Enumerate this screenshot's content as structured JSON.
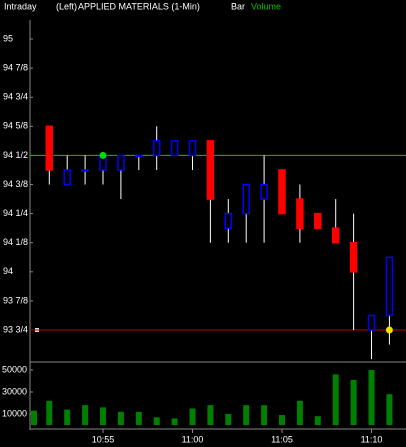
{
  "chart_data": {
    "type": "candlestick",
    "mode": "Intraday",
    "side": "(Left)",
    "title": "APPLIED MATERIALS (1-Min)",
    "style": "Bar",
    "study": "Volume",
    "categories": [
      null,
      null,
      null,
      null,
      "10:55",
      null,
      null,
      null,
      null,
      "11:00",
      null,
      null,
      null,
      null,
      "11:05",
      null,
      null,
      null,
      null,
      "11:10",
      null
    ],
    "open": [
      null,
      94.625,
      94.375,
      94.4375,
      94.4375,
      94.4375,
      94.5,
      94.5,
      94.5,
      94.5,
      94.5625,
      94.1875,
      94.25,
      94.3125,
      94.4375,
      94.3125,
      94.25,
      94.1875,
      94.125,
      93.75,
      93.8125
    ],
    "high": [
      null,
      94.625,
      94.5,
      94.5,
      94.5,
      94.5,
      94.5,
      94.625,
      94.5625,
      94.5625,
      94.5625,
      94.3125,
      94.375,
      94.5,
      94.4375,
      94.375,
      94.25,
      94.3125,
      94.25,
      93.8125,
      94.0625
    ],
    "low": [
      null,
      94.375,
      94.375,
      94.375,
      94.375,
      94.3125,
      94.4375,
      94.4375,
      94.5,
      94.4375,
      94.125,
      94.125,
      94.125,
      94.125,
      94.25,
      94.125,
      94.1875,
      94.125,
      93.75,
      93.625,
      93.6875
    ],
    "close": [
      null,
      94.4375,
      94.4375,
      94.4375,
      94.5,
      94.5,
      94.5,
      94.5625,
      94.5625,
      94.5625,
      94.3125,
      94.25,
      94.375,
      94.375,
      94.25,
      94.1875,
      94.1875,
      94.125,
      94.0,
      93.8125,
      94.0625
    ],
    "up_color": "#0000ff",
    "down_color": "#ff0000",
    "ylim": [
      93.625,
      95.0625
    ],
    "yticks": [
      95,
      {
        "value": 94.875,
        "label": "94 7/8"
      },
      {
        "value": 94.75,
        "label": "94 3/4"
      },
      {
        "value": 94.625,
        "label": "94 5/8"
      },
      {
        "value": 94.5,
        "label": "94 1/2"
      },
      {
        "value": 94.375,
        "label": "94 3/8"
      },
      {
        "value": 94.25,
        "label": "94 1/4"
      },
      {
        "value": 94.125,
        "label": "94 1/8"
      },
      94,
      {
        "value": 93.875,
        "label": "93 7/8"
      },
      {
        "value": 93.75,
        "label": "93 3/4"
      }
    ],
    "ref_lines": [
      {
        "value": 94.5,
        "color": "#00c800"
      },
      {
        "value": 93.75,
        "color": "#c00000"
      }
    ],
    "markers": [
      {
        "index": 4,
        "value": 94.5,
        "color": "#00e000"
      },
      {
        "index": 20,
        "value": 93.75,
        "color": "#f0e000"
      }
    ],
    "volume": {
      "values": [
        13000,
        22000,
        14000,
        18000,
        16000,
        12000,
        12000,
        7000,
        6000,
        15000,
        18000,
        10000,
        18000,
        18000,
        9000,
        22000,
        8000,
        46000,
        41000,
        50000,
        28000
      ],
      "color": "#008000",
      "ylim": [
        0,
        55000
      ],
      "yticks": [
        50000,
        30000,
        10000
      ]
    }
  }
}
